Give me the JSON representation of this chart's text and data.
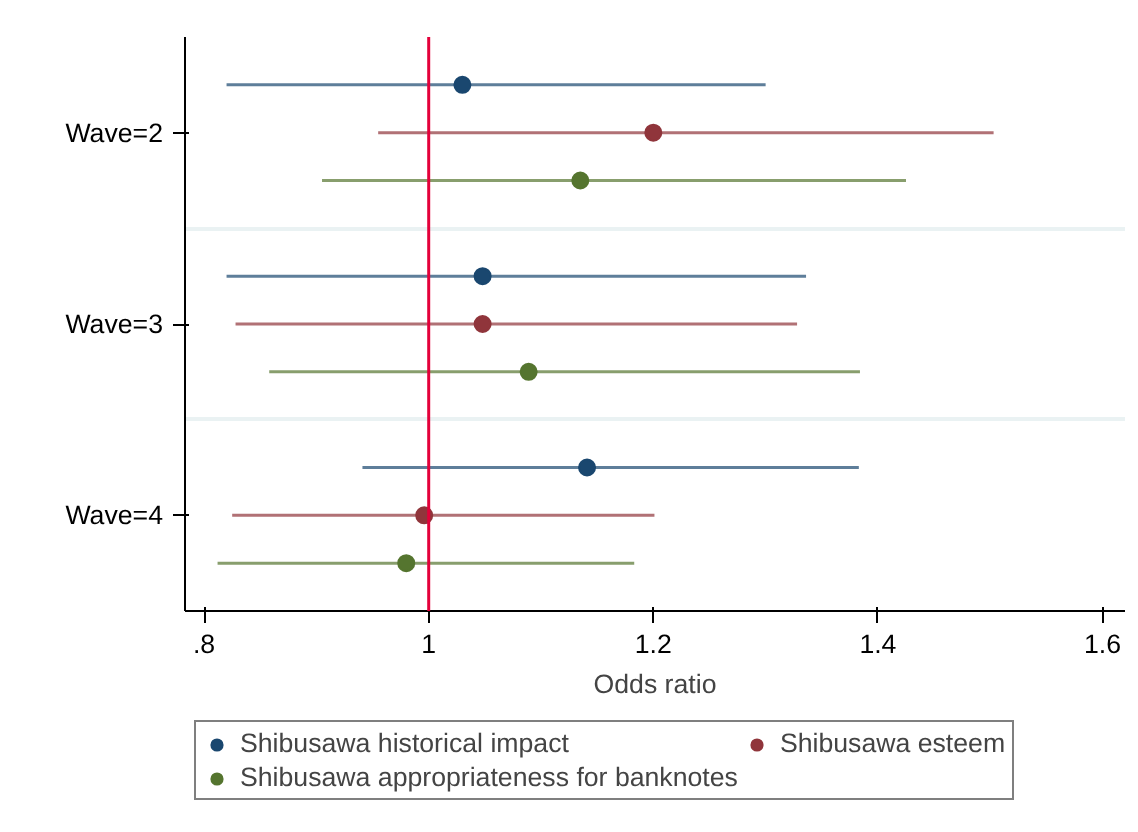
{
  "chart_data": {
    "type": "scatter",
    "orientation": "horizontal",
    "xlabel": "Odds ratio",
    "categories": [
      "Wave=2",
      "Wave=3",
      "Wave=4"
    ],
    "series": [
      {
        "name": "Shibusawa historical impact",
        "color": "#1a476f",
        "values": [
          1.03,
          1.048,
          1.141
        ],
        "errors": [
          [
            0.82,
            1.3
          ],
          [
            0.82,
            1.336
          ],
          [
            0.941,
            1.383
          ]
        ]
      },
      {
        "name": "Shibusawa esteem",
        "color": "#90353b",
        "values": [
          1.2,
          1.048,
          0.996
        ],
        "errors": [
          [
            0.955,
            1.503
          ],
          [
            0.828,
            1.328
          ],
          [
            0.825,
            1.201
          ]
        ]
      },
      {
        "name": "Shibusawa appropriateness for banknotes",
        "color": "#55752f",
        "values": [
          1.135,
          1.089,
          0.98
        ],
        "errors": [
          [
            0.905,
            1.425
          ],
          [
            0.858,
            1.384
          ],
          [
            0.812,
            1.183
          ]
        ]
      }
    ],
    "xlim": [
      0.783,
      1.62
    ],
    "xticks": [
      {
        "value": 0.8,
        "label": ".8"
      },
      1,
      1.2,
      1.4,
      1.6
    ],
    "ref_lines": [
      {
        "axis": "x",
        "value": 1,
        "color": "#e4003a"
      }
    ],
    "grid": "y",
    "legend": "bottom",
    "marker": "circle"
  }
}
